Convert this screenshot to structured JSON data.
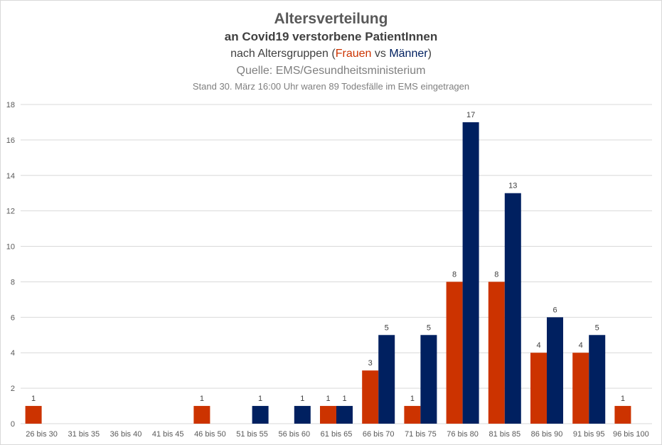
{
  "header": {
    "title": "Altersverteilung",
    "subtitle": "an Covid19 verstorbene PatientInnen",
    "line3_prefix": "nach Altersgruppen (",
    "line3_frauen": "Frauen",
    "line3_vs": " vs ",
    "line3_maenner": "Männer",
    "line3_suffix": ")",
    "source": "Quelle: EMS/Gesundheitsministerium",
    "note": "Stand 30. März 16:00 Uhr waren 89 Todesfälle im EMS eingetragen"
  },
  "colors": {
    "frauen": "#cc3300",
    "maenner": "#002060",
    "grid": "#d9d9d9",
    "axis_text": "#595959"
  },
  "chart_data": {
    "type": "bar",
    "title": "Altersverteilung",
    "categories": [
      "26 bis 30",
      "31 bis 35",
      "36 bis 40",
      "41 bis 45",
      "46 bis 50",
      "51 bis 55",
      "56 bis 60",
      "61 bis 65",
      "66 bis 70",
      "71 bis 75",
      "76 bis 80",
      "81 bis 85",
      "86 bis 90",
      "91 bis 95",
      "96 bis 100"
    ],
    "series": [
      {
        "name": "Frauen",
        "color": "#cc3300",
        "values": [
          1,
          0,
          0,
          0,
          1,
          0,
          0,
          1,
          3,
          1,
          8,
          8,
          4,
          4,
          1
        ]
      },
      {
        "name": "Männer",
        "color": "#002060",
        "values": [
          0,
          0,
          0,
          0,
          0,
          1,
          1,
          1,
          5,
          5,
          17,
          13,
          6,
          5,
          0
        ]
      }
    ],
    "ylim": [
      0,
      18
    ],
    "yticks": [
      0,
      2,
      4,
      6,
      8,
      10,
      12,
      14,
      16,
      18
    ],
    "grid": true,
    "data_labels": true,
    "legend": "none"
  }
}
